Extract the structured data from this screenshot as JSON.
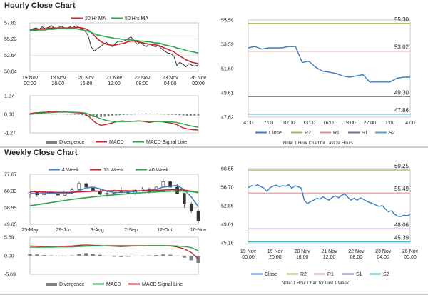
{
  "sections": {
    "hourly": "Hourly Close Chart",
    "weekly": "Weekly Close Chart"
  },
  "colors": {
    "price": "#333333",
    "ma_red": "#c0272d",
    "ma_green": "#2aa54a",
    "ma_blue": "#4a7ec0",
    "close": "#3a7bbf",
    "r2": "#9bbb59",
    "r1": "#d99694",
    "s1": "#8064a2",
    "s2": "#4bacc6",
    "grid": "#c8c8c8",
    "divergence": "#7f7f7f"
  },
  "chart_data": [
    {
      "id": "hourly-price",
      "type": "line",
      "x_ticks": [
        "19 Nov\n00:00",
        "19 Nov\n20:00",
        "20 Nov\n16:00",
        "21 Nov\n12:00",
        "22 Nov\n08:00",
        "23 Nov\n04:00",
        "26 Nov\n00:00"
      ],
      "y_ticks": [
        "57.83",
        "55.23",
        "52.64",
        "50.04"
      ],
      "ylim": [
        50.04,
        57.83
      ],
      "legend": [
        "20 Hr MA",
        "50 Hrs MA"
      ],
      "series": [
        {
          "name": "Price",
          "color": "price",
          "values": [
            56.7,
            56.9,
            57.0,
            56.8,
            57.2,
            56.9,
            57.1,
            57.4,
            57.0,
            56.9,
            57.3,
            57.1,
            56.8,
            57.2,
            57.0,
            57.4,
            57.1,
            56.9,
            56.5,
            55.8,
            54.0,
            53.3,
            53.7,
            54.0,
            54.4,
            54.7,
            54.3,
            54.0,
            54.6,
            54.9,
            54.8,
            55.0,
            55.3,
            55.6,
            55.0,
            54.4,
            54.7,
            54.3,
            54.0,
            54.5,
            54.2,
            54.0,
            54.2,
            53.7,
            53.3,
            53.0,
            52.9,
            52.5,
            51.0,
            51.5,
            51.2,
            50.8,
            51.3,
            51.0,
            50.9,
            51.1
          ]
        },
        {
          "name": "20 Hr MA",
          "color": "ma_red",
          "values": [
            56.7,
            56.7,
            56.8,
            56.8,
            56.9,
            56.9,
            57.0,
            57.0,
            57.0,
            57.0,
            57.0,
            57.0,
            57.0,
            57.0,
            57.0,
            57.1,
            57.1,
            57.0,
            56.9,
            56.7,
            56.3,
            55.8,
            55.3,
            54.9,
            54.6,
            54.4,
            54.3,
            54.2,
            54.3,
            54.4,
            54.5,
            54.6,
            54.8,
            54.9,
            54.9,
            54.8,
            54.7,
            54.6,
            54.5,
            54.4,
            54.3,
            54.3,
            54.2,
            54.0,
            53.8,
            53.6,
            53.4,
            53.2,
            52.8,
            52.5,
            52.2,
            51.9,
            51.7,
            51.5,
            51.4,
            51.3
          ]
        },
        {
          "name": "50 Hrs MA",
          "color": "ma_green",
          "values": [
            56.6,
            56.6,
            56.6,
            56.7,
            56.7,
            56.7,
            56.8,
            56.8,
            56.8,
            56.9,
            56.9,
            56.9,
            56.9,
            56.9,
            56.9,
            56.9,
            56.8,
            56.7,
            56.6,
            56.5,
            56.3,
            56.1,
            55.9,
            55.8,
            55.7,
            55.6,
            55.5,
            55.4,
            55.3,
            55.3,
            55.2,
            55.2,
            55.1,
            55.1,
            55.0,
            55.0,
            54.9,
            54.9,
            54.8,
            54.8,
            54.7,
            54.6,
            54.6,
            54.5,
            54.3,
            54.2,
            54.1,
            54.0,
            53.8,
            53.7,
            53.6,
            53.4,
            53.3,
            53.2,
            53.1,
            53.0
          ]
        }
      ]
    },
    {
      "id": "hourly-macd",
      "type": "line",
      "y_ticks": [
        "1.27",
        "0.00",
        "-1.27"
      ],
      "ylim": [
        -1.27,
        1.27
      ],
      "legend": [
        "Divergence",
        "MACD",
        "MACD Signal Line"
      ],
      "divergence": [
        0,
        0.02,
        0.04,
        0.05,
        0.04,
        0.03,
        0.02,
        0.02,
        0.03,
        0.02,
        0.01,
        0.01,
        0.0,
        -0.02,
        -0.05,
        -0.1,
        -0.15,
        -0.2,
        -0.22,
        -0.2,
        -0.17,
        -0.14,
        -0.1,
        -0.08,
        -0.06,
        -0.04,
        -0.02,
        0.0,
        0.02,
        0.04,
        0.05,
        0.06,
        0.05,
        0.04,
        0.03,
        0.02,
        0.01,
        0.0,
        -0.02,
        -0.04,
        -0.06,
        -0.08,
        -0.1,
        -0.1,
        -0.09,
        -0.08
      ],
      "series": [
        {
          "name": "MACD",
          "color": "ma_red",
          "values": [
            0.05,
            0.1,
            0.12,
            0.15,
            0.18,
            0.2,
            0.18,
            0.15,
            0.12,
            0.1,
            0.05,
            -0.2,
            -0.55,
            -0.75,
            -0.7,
            -0.6,
            -0.5,
            -0.45,
            -0.5,
            -0.48,
            -0.45,
            -0.5,
            -0.55,
            -0.5,
            -0.48,
            -0.55,
            -0.6,
            -0.7,
            -0.9,
            -1.0,
            -1.05,
            -1.08
          ]
        },
        {
          "name": "MACD Signal Line",
          "color": "ma_green",
          "values": [
            0.0,
            0.04,
            0.07,
            0.1,
            0.12,
            0.14,
            0.15,
            0.15,
            0.14,
            0.13,
            0.1,
            0.0,
            -0.15,
            -0.3,
            -0.42,
            -0.48,
            -0.5,
            -0.5,
            -0.49,
            -0.48,
            -0.47,
            -0.47,
            -0.48,
            -0.49,
            -0.49,
            -0.5,
            -0.52,
            -0.56,
            -0.64,
            -0.74,
            -0.82,
            -0.88
          ]
        }
      ]
    },
    {
      "id": "hourly-last24",
      "type": "line",
      "x_ticks": [
        "4:00",
        "7:00",
        "10:00",
        "13:00",
        "16:00",
        "19:00",
        "22:00",
        "1:00",
        "4:00"
      ],
      "y_ticks": [
        "55.58",
        "53.59",
        "51.60",
        "49.61",
        "47.62"
      ],
      "ylim": [
        47.62,
        55.58
      ],
      "levels": [
        {
          "name": "R2",
          "value": "55.30",
          "color": "r2"
        },
        {
          "name": "R1",
          "value": "53.02",
          "color": "r1"
        },
        {
          "name": "S1",
          "value": "49.30",
          "color": "s1"
        },
        {
          "name": "S2",
          "value": "47.86",
          "color": "s2"
        }
      ],
      "legend": [
        "Close",
        "R2",
        "R1",
        "S1",
        "S2"
      ],
      "note": "Note: 1 Hour Chart for Last 24 Hours",
      "series": [
        {
          "name": "Close",
          "color": "close",
          "values": [
            53.3,
            53.4,
            53.2,
            53.3,
            53.3,
            53.3,
            53.4,
            53.4,
            52.1,
            52.2,
            51.7,
            51.4,
            51.3,
            51.2,
            51.0,
            50.9,
            51.0,
            51.1,
            50.5,
            50.5,
            50.5,
            50.5,
            50.8,
            50.9,
            50.9
          ]
        }
      ]
    },
    {
      "id": "weekly-price",
      "type": "line",
      "x_ticks": [
        "25-May",
        "29-Jun",
        "3-Aug",
        "7-Sep",
        "12-Oct",
        "16-Nov"
      ],
      "y_ticks": [
        "77.67",
        "68.33",
        "58.99",
        "49.65"
      ],
      "ylim": [
        49.65,
        77.67
      ],
      "legend": [
        "4 Week",
        "13 Week",
        "40 Week"
      ],
      "candles": [
        [
          66.5,
          68.0,
          64.5,
          67.5
        ],
        [
          67.5,
          68.5,
          65.0,
          66.2
        ],
        [
          66.2,
          68.0,
          64.8,
          67.8
        ],
        [
          67.8,
          69.5,
          66.8,
          66.8
        ],
        [
          66.8,
          67.5,
          65.0,
          66.0
        ],
        [
          66.0,
          68.5,
          65.5,
          68.2
        ],
        [
          68.2,
          70.0,
          67.0,
          69.0
        ],
        [
          69.0,
          73.5,
          68.5,
          72.5
        ],
        [
          72.5,
          73.8,
          70.0,
          70.5
        ],
        [
          70.5,
          71.5,
          67.5,
          68.0
        ],
        [
          68.0,
          69.5,
          66.0,
          66.5
        ],
        [
          66.5,
          68.0,
          65.0,
          67.0
        ],
        [
          67.0,
          69.0,
          66.0,
          68.5
        ],
        [
          68.5,
          70.5,
          67.0,
          67.5
        ],
        [
          67.5,
          68.5,
          66.0,
          67.0
        ],
        [
          67.0,
          69.0,
          66.2,
          68.8
        ],
        [
          68.8,
          70.5,
          68.0,
          69.5
        ],
        [
          69.5,
          70.2,
          67.0,
          68.0
        ],
        [
          68.0,
          71.0,
          67.5,
          70.5
        ],
        [
          70.5,
          75.5,
          70.0,
          73.5
        ],
        [
          73.5,
          74.5,
          70.0,
          70.5
        ],
        [
          70.5,
          72.0,
          66.5,
          67.0
        ],
        [
          67.0,
          67.5,
          59.0,
          61.0
        ],
        [
          61.0,
          62.0,
          56.0,
          57.0
        ],
        [
          57.0,
          58.0,
          50.5,
          51.5
        ]
      ],
      "series": [
        {
          "name": "4 Week",
          "color": "ma_blue",
          "values": [
            67.0,
            66.8,
            66.9,
            67.0,
            66.8,
            66.8,
            67.2,
            68.5,
            70.0,
            70.5,
            69.5,
            68.2,
            67.5,
            67.5,
            67.8,
            68.0,
            68.6,
            68.8,
            69.2,
            70.5,
            71.0,
            71.5,
            69.0,
            65.0,
            59.5
          ]
        },
        {
          "name": "13 Week",
          "color": "ma_red",
          "values": [
            68.0,
            67.8,
            67.7,
            67.6,
            67.5,
            67.5,
            67.6,
            67.8,
            68.0,
            68.2,
            68.3,
            68.4,
            68.5,
            68.5,
            68.4,
            68.4,
            68.4,
            68.5,
            68.6,
            68.8,
            69.0,
            69.1,
            68.8,
            68.2,
            67.3
          ]
        },
        {
          "name": "40 Week",
          "color": "ma_green",
          "values": [
            60.0,
            60.6,
            61.2,
            61.8,
            62.4,
            63.0,
            63.6,
            64.1,
            64.6,
            65.0,
            65.4,
            65.8,
            66.2,
            66.5,
            66.8,
            67.1,
            67.4,
            67.6,
            67.8,
            68.0,
            68.2,
            68.3,
            68.2,
            68.0,
            67.6
          ]
        }
      ]
    },
    {
      "id": "weekly-macd",
      "type": "line",
      "y_ticks": [
        "5.69",
        "0.00",
        "-5.69"
      ],
      "ylim": [
        -5.69,
        5.69
      ],
      "legend": [
        "Divergence",
        "MACD",
        "MACD Signal Line"
      ],
      "divergence": [
        0.6,
        0.4,
        0.2,
        0.1,
        0.0,
        -0.1,
        0.1,
        0.5,
        0.8,
        0.6,
        0.3,
        0.0,
        -0.3,
        -0.4,
        -0.3,
        -0.2,
        0.0,
        0.1,
        0.2,
        0.4,
        0.3,
        0.0,
        -0.6,
        -1.4,
        -2.2
      ],
      "series": [
        {
          "name": "MACD",
          "color": "ma_red",
          "values": [
            3.0,
            2.9,
            2.8,
            2.7,
            2.8,
            2.9,
            3.0,
            3.2,
            3.3,
            3.2,
            3.1,
            3.0,
            2.9,
            2.8,
            2.9,
            3.0,
            3.0,
            3.1,
            3.1,
            3.1,
            3.0,
            2.7,
            2.1,
            1.0,
            -1.0
          ]
        },
        {
          "name": "MACD Signal Line",
          "color": "ma_green",
          "values": [
            2.6,
            2.6,
            2.6,
            2.6,
            2.7,
            2.7,
            2.7,
            2.8,
            2.9,
            3.0,
            3.0,
            3.1,
            3.1,
            3.1,
            3.1,
            3.1,
            3.1,
            3.1,
            3.1,
            3.1,
            3.1,
            3.0,
            2.8,
            2.5,
            1.5
          ]
        }
      ]
    },
    {
      "id": "weekly-lastweek",
      "type": "line",
      "x_ticks": [
        "19 Nov\n00:00",
        "19 Nov\n20:00",
        "20 Nov\n16:00",
        "21 Nov\n12:00",
        "22 Nov\n08:00",
        "23 Nov\n04:00",
        "26 Nov\n00:00"
      ],
      "y_ticks": [
        "60.55",
        "56.70",
        "52.86",
        "49.01",
        "45.16"
      ],
      "ylim": [
        45.16,
        60.55
      ],
      "levels": [
        {
          "name": "R2",
          "value": "60.25",
          "color": "r2"
        },
        {
          "name": "R1",
          "value": "55.49",
          "color": "r1"
        },
        {
          "name": "S1",
          "value": "48.06",
          "color": "s1"
        },
        {
          "name": "S2",
          "value": "45.39",
          "color": "s2"
        }
      ],
      "legend": [
        "Close",
        "R2",
        "R1",
        "S1",
        "S2"
      ],
      "note": "Note: 1 Hour Chart for Last 1 Week",
      "series": [
        {
          "name": "Close",
          "color": "close",
          "values": [
            56.6,
            57.0,
            56.9,
            57.2,
            56.8,
            56.5,
            55.8,
            56.6,
            56.9,
            57.1,
            56.8,
            57.0,
            56.9,
            57.2,
            56.5,
            57.0,
            56.8,
            56.5,
            54.0,
            53.3,
            53.7,
            54.0,
            54.4,
            54.2,
            54.7,
            54.3,
            54.0,
            54.6,
            54.9,
            54.5,
            55.0,
            55.3,
            54.6,
            54.0,
            54.4,
            54.0,
            54.5,
            54.2,
            53.8,
            53.5,
            53.3,
            53.0,
            52.7,
            52.9,
            52.2,
            51.6,
            51.8,
            51.1,
            50.7,
            50.6,
            50.9,
            50.8,
            51.0
          ]
        }
      ]
    }
  ]
}
